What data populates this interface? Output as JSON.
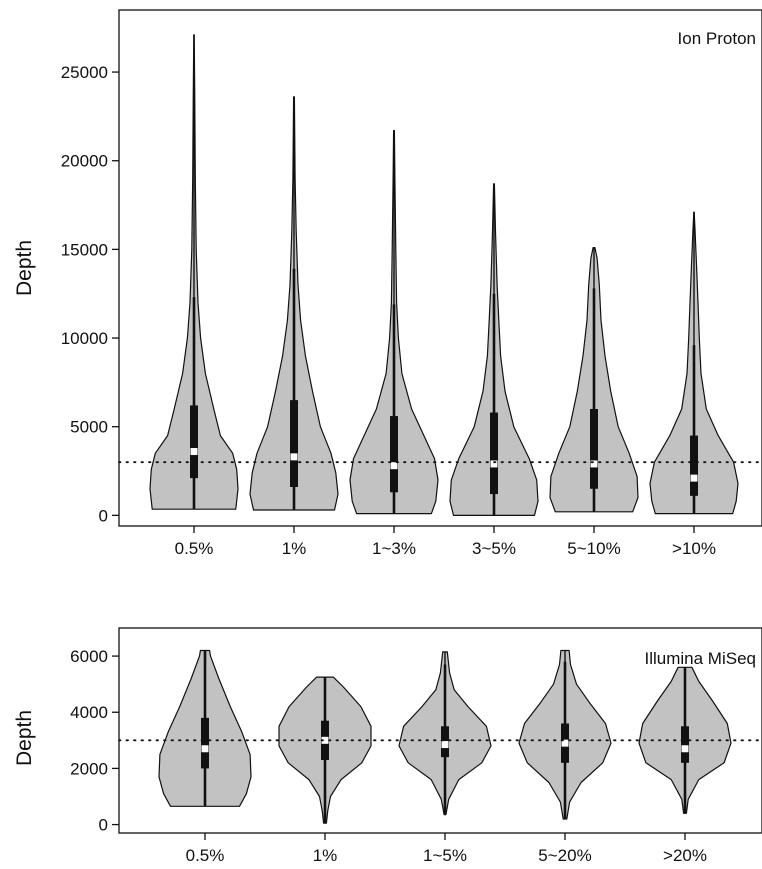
{
  "chart_data": [
    {
      "type": "violin",
      "annotation": "Ion Proton",
      "ylabel": "Depth",
      "xlabel": "",
      "ylim": [
        -600,
        28500
      ],
      "yticks": [
        0,
        5000,
        10000,
        15000,
        20000,
        25000
      ],
      "ytick_labels": [
        "0",
        "5000",
        "10000",
        "15000",
        "20000",
        "25000"
      ],
      "reference_line": 3000,
      "categories": [
        "0.5%",
        "1%",
        "1~3%",
        "3~5%",
        "5~10%",
        ">10%"
      ],
      "fill_color": "#c2c2c2",
      "violins": [
        {
          "category": "0.5%",
          "min": 350,
          "max": 27100,
          "q1": 2100,
          "median": 3600,
          "q3": 6200,
          "whisker_low": 350,
          "whisker_high": 12300,
          "density": [
            [
              350,
              0.95
            ],
            [
              1500,
              1.0
            ],
            [
              2600,
              0.97
            ],
            [
              3500,
              0.88
            ],
            [
              4500,
              0.6
            ],
            [
              6000,
              0.45
            ],
            [
              8000,
              0.26
            ],
            [
              10000,
              0.15
            ],
            [
              12000,
              0.09
            ],
            [
              15000,
              0.05
            ],
            [
              19000,
              0.03
            ],
            [
              24000,
              0.015
            ],
            [
              27100,
              0.005
            ]
          ]
        },
        {
          "category": "1%",
          "min": 300,
          "max": 23600,
          "q1": 1600,
          "median": 3300,
          "q3": 6500,
          "whisker_low": 300,
          "whisker_high": 13900,
          "density": [
            [
              300,
              0.92
            ],
            [
              1200,
              1.0
            ],
            [
              2400,
              0.95
            ],
            [
              3500,
              0.84
            ],
            [
              5000,
              0.6
            ],
            [
              7000,
              0.42
            ],
            [
              9000,
              0.26
            ],
            [
              11000,
              0.15
            ],
            [
              13000,
              0.09
            ],
            [
              16000,
              0.05
            ],
            [
              19000,
              0.025
            ],
            [
              23600,
              0.008
            ]
          ]
        },
        {
          "category": "1~3%",
          "min": 100,
          "max": 21700,
          "q1": 1300,
          "median": 2800,
          "q3": 5600,
          "whisker_low": 100,
          "whisker_high": 11900,
          "density": [
            [
              100,
              0.85
            ],
            [
              800,
              0.95
            ],
            [
              2000,
              1.0
            ],
            [
              3200,
              0.92
            ],
            [
              4500,
              0.68
            ],
            [
              6000,
              0.4
            ],
            [
              8000,
              0.18
            ],
            [
              10000,
              0.1
            ],
            [
              12000,
              0.06
            ],
            [
              15000,
              0.04
            ],
            [
              19000,
              0.02
            ],
            [
              21700,
              0.008
            ]
          ]
        },
        {
          "category": "3~5%",
          "min": 0,
          "max": 18700,
          "q1": 1200,
          "median": 2900,
          "q3": 5800,
          "whisker_low": 0,
          "whisker_high": 12500,
          "density": [
            [
              0,
              0.92
            ],
            [
              800,
              1.0
            ],
            [
              2000,
              0.97
            ],
            [
              3200,
              0.8
            ],
            [
              5000,
              0.45
            ],
            [
              7000,
              0.25
            ],
            [
              9000,
              0.15
            ],
            [
              11000,
              0.11
            ],
            [
              13000,
              0.07
            ],
            [
              16000,
              0.035
            ],
            [
              18700,
              0.008
            ]
          ]
        },
        {
          "category": "5~10%",
          "min": 200,
          "max": 15100,
          "q1": 1500,
          "median": 2900,
          "q3": 6000,
          "whisker_low": 200,
          "whisker_high": 12800,
          "density": [
            [
              200,
              0.88
            ],
            [
              1000,
              1.0
            ],
            [
              2200,
              0.98
            ],
            [
              3500,
              0.8
            ],
            [
              5000,
              0.55
            ],
            [
              7000,
              0.38
            ],
            [
              9000,
              0.25
            ],
            [
              11000,
              0.16
            ],
            [
              13000,
              0.12
            ],
            [
              14500,
              0.07
            ],
            [
              15100,
              0.02
            ]
          ]
        },
        {
          "category": ">10%",
          "min": 100,
          "max": 17100,
          "q1": 1100,
          "median": 2100,
          "q3": 4500,
          "whisker_low": 100,
          "whisker_high": 9600,
          "density": [
            [
              100,
              0.88
            ],
            [
              800,
              0.96
            ],
            [
              1800,
              1.0
            ],
            [
              3000,
              0.9
            ],
            [
              4500,
              0.55
            ],
            [
              6000,
              0.28
            ],
            [
              8000,
              0.16
            ],
            [
              10000,
              0.12
            ],
            [
              12000,
              0.09
            ],
            [
              14000,
              0.06
            ],
            [
              16000,
              0.025
            ],
            [
              17100,
              0.005
            ]
          ]
        }
      ]
    },
    {
      "type": "violin",
      "annotation": "Illumina MiSeq",
      "ylabel": "Depth",
      "xlabel": "",
      "ylim": [
        -300,
        7000
      ],
      "yticks": [
        0,
        2000,
        4000,
        6000
      ],
      "ytick_labels": [
        "0",
        "2000",
        "4000",
        "6000"
      ],
      "reference_line": 3000,
      "categories": [
        "0.5%",
        "1%",
        "1~5%",
        "5~20%",
        ">20%"
      ],
      "fill_color": "#c2c2c2",
      "violins": [
        {
          "category": "0.5%",
          "min": 650,
          "max": 6200,
          "q1": 2000,
          "median": 2700,
          "q3": 3800,
          "whisker_low": 650,
          "whisker_high": 6200,
          "density": [
            [
              650,
              0.75
            ],
            [
              1100,
              0.9
            ],
            [
              1700,
              1.0
            ],
            [
              2500,
              0.98
            ],
            [
              3300,
              0.8
            ],
            [
              4200,
              0.55
            ],
            [
              5200,
              0.3
            ],
            [
              6000,
              0.12
            ],
            [
              6200,
              0.1
            ]
          ]
        },
        {
          "category": "1%",
          "min": 50,
          "max": 5250,
          "q1": 2300,
          "median": 3000,
          "q3": 3700,
          "whisker_low": 50,
          "whisker_high": 5250,
          "density": [
            [
              50,
              0.03
            ],
            [
              500,
              0.06
            ],
            [
              1000,
              0.12
            ],
            [
              1600,
              0.35
            ],
            [
              2200,
              0.8
            ],
            [
              2800,
              1.0
            ],
            [
              3500,
              1.0
            ],
            [
              4200,
              0.78
            ],
            [
              4900,
              0.4
            ],
            [
              5250,
              0.18
            ]
          ]
        },
        {
          "category": "1~5%",
          "min": 350,
          "max": 6150,
          "q1": 2400,
          "median": 2850,
          "q3": 3500,
          "whisker_low": 350,
          "whisker_high": 5700,
          "density": [
            [
              350,
              0.02
            ],
            [
              900,
              0.08
            ],
            [
              1600,
              0.3
            ],
            [
              2200,
              0.8
            ],
            [
              2800,
              1.0
            ],
            [
              3500,
              0.9
            ],
            [
              4200,
              0.5
            ],
            [
              4800,
              0.2
            ],
            [
              5400,
              0.1
            ],
            [
              6150,
              0.05
            ]
          ]
        },
        {
          "category": "5~20%",
          "min": 200,
          "max": 6200,
          "q1": 2200,
          "median": 2900,
          "q3": 3600,
          "whisker_low": 200,
          "whisker_high": 5800,
          "density": [
            [
              200,
              0.04
            ],
            [
              800,
              0.1
            ],
            [
              1500,
              0.35
            ],
            [
              2200,
              0.82
            ],
            [
              2900,
              1.0
            ],
            [
              3600,
              0.88
            ],
            [
              4300,
              0.55
            ],
            [
              5000,
              0.25
            ],
            [
              5700,
              0.12
            ],
            [
              6200,
              0.09
            ]
          ]
        },
        {
          "category": ">20%",
          "min": 400,
          "max": 5600,
          "q1": 2200,
          "median": 2700,
          "q3": 3500,
          "whisker_low": 400,
          "whisker_high": 5600,
          "density": [
            [
              400,
              0.03
            ],
            [
              900,
              0.07
            ],
            [
              1600,
              0.3
            ],
            [
              2200,
              0.85
            ],
            [
              2900,
              1.0
            ],
            [
              3600,
              0.92
            ],
            [
              4400,
              0.6
            ],
            [
              5100,
              0.3
            ],
            [
              5600,
              0.15
            ]
          ]
        }
      ]
    }
  ]
}
